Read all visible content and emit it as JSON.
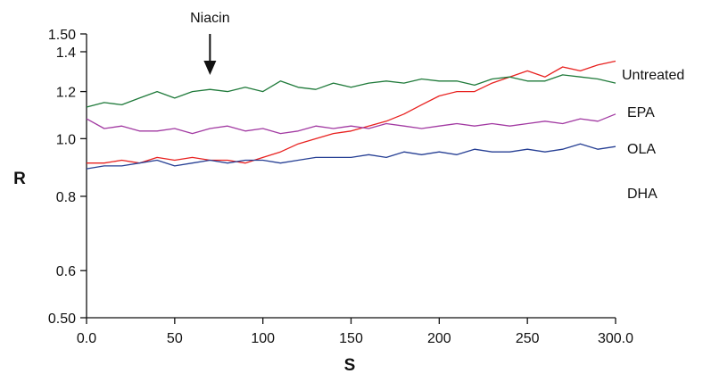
{
  "chart_data": {
    "type": "line",
    "title": "",
    "xlabel": "S",
    "ylabel": "R",
    "xlim": [
      0,
      300
    ],
    "ylim": [
      0.5,
      1.5
    ],
    "y_scale": "log",
    "grid": false,
    "legend": "inline labels at right end of each line",
    "x_ticks": [
      {
        "value": 0,
        "label": "0.0"
      },
      {
        "value": 50,
        "label": "50"
      },
      {
        "value": 100,
        "label": "100"
      },
      {
        "value": 150,
        "label": "150"
      },
      {
        "value": 200,
        "label": "200"
      },
      {
        "value": 250,
        "label": "250"
      },
      {
        "value": 300,
        "label": "300.0"
      }
    ],
    "y_ticks": [
      {
        "value": 0.5,
        "label": "0.50"
      },
      {
        "value": 0.6,
        "label": "0.6"
      },
      {
        "value": 0.8,
        "label": "0.8"
      },
      {
        "value": 1.0,
        "label": "1.0"
      },
      {
        "value": 1.2,
        "label": "1.2"
      },
      {
        "value": 1.4,
        "label": "1.4"
      },
      {
        "value": 1.5,
        "label": "1.50"
      }
    ],
    "annotation": {
      "text": "Niacin",
      "x": 70
    },
    "series": [
      {
        "name": "Untreated",
        "color": "#e8211f",
        "x": [
          0,
          10,
          20,
          30,
          40,
          50,
          60,
          70,
          80,
          90,
          100,
          110,
          120,
          130,
          140,
          150,
          160,
          170,
          180,
          190,
          200,
          210,
          220,
          230,
          240,
          250,
          260,
          270,
          280,
          290,
          300
        ],
        "y": [
          0.91,
          0.91,
          0.92,
          0.91,
          0.93,
          0.92,
          0.93,
          0.92,
          0.92,
          0.91,
          0.93,
          0.95,
          0.98,
          1.0,
          1.02,
          1.03,
          1.05,
          1.07,
          1.1,
          1.14,
          1.18,
          1.2,
          1.2,
          1.24,
          1.27,
          1.3,
          1.27,
          1.32,
          1.3,
          1.33,
          1.35
        ]
      },
      {
        "name": "EPA",
        "color": "#1f7a3a",
        "x": [
          0,
          10,
          20,
          30,
          40,
          50,
          60,
          70,
          80,
          90,
          100,
          110,
          120,
          130,
          140,
          150,
          160,
          170,
          180,
          190,
          200,
          210,
          220,
          230,
          240,
          250,
          260,
          270,
          280,
          290,
          300
        ],
        "y": [
          1.13,
          1.15,
          1.14,
          1.17,
          1.2,
          1.17,
          1.2,
          1.21,
          1.2,
          1.22,
          1.2,
          1.25,
          1.22,
          1.21,
          1.24,
          1.22,
          1.24,
          1.25,
          1.24,
          1.26,
          1.25,
          1.25,
          1.23,
          1.26,
          1.27,
          1.25,
          1.25,
          1.28,
          1.27,
          1.26,
          1.24
        ]
      },
      {
        "name": "OLA",
        "color": "#a23aa2",
        "x": [
          0,
          10,
          20,
          30,
          40,
          50,
          60,
          70,
          80,
          90,
          100,
          110,
          120,
          130,
          140,
          150,
          160,
          170,
          180,
          190,
          200,
          210,
          220,
          230,
          240,
          250,
          260,
          270,
          280,
          290,
          300
        ],
        "y": [
          1.08,
          1.04,
          1.05,
          1.03,
          1.03,
          1.04,
          1.02,
          1.04,
          1.05,
          1.03,
          1.04,
          1.02,
          1.03,
          1.05,
          1.04,
          1.05,
          1.04,
          1.06,
          1.05,
          1.04,
          1.05,
          1.06,
          1.05,
          1.06,
          1.05,
          1.06,
          1.07,
          1.06,
          1.08,
          1.07,
          1.1
        ]
      },
      {
        "name": "DHA",
        "color": "#263f94",
        "x": [
          0,
          10,
          20,
          30,
          40,
          50,
          60,
          70,
          80,
          90,
          100,
          110,
          120,
          130,
          140,
          150,
          160,
          170,
          180,
          190,
          200,
          210,
          220,
          230,
          240,
          250,
          260,
          270,
          280,
          290,
          300
        ],
        "y": [
          0.89,
          0.9,
          0.9,
          0.91,
          0.92,
          0.9,
          0.91,
          0.92,
          0.91,
          0.92,
          0.92,
          0.91,
          0.92,
          0.93,
          0.93,
          0.93,
          0.94,
          0.93,
          0.95,
          0.94,
          0.95,
          0.94,
          0.96,
          0.95,
          0.95,
          0.96,
          0.95,
          0.96,
          0.98,
          0.96,
          0.97
        ]
      }
    ]
  }
}
